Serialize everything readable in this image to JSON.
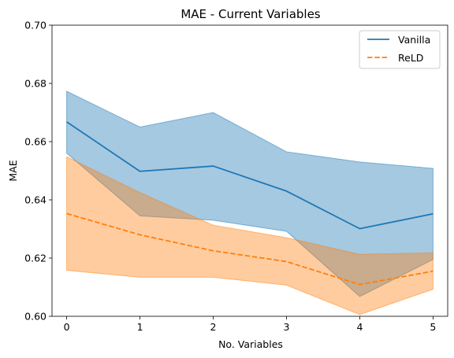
{
  "chart_data": {
    "type": "line",
    "title": "MAE - Current Variables",
    "xlabel": "No. Variables",
    "ylabel": "MAE",
    "x": [
      0,
      1,
      2,
      3,
      4,
      5
    ],
    "xticks": [
      "0",
      "1",
      "2",
      "3",
      "4",
      "5"
    ],
    "xlim": [
      -0.2,
      5.2
    ],
    "ylim": [
      0.6,
      0.7
    ],
    "yticks": [
      "0.60",
      "0.62",
      "0.64",
      "0.66",
      "0.68",
      "0.70"
    ],
    "ytick_values": [
      0.6,
      0.62,
      0.64,
      0.66,
      0.68,
      0.7
    ],
    "grid": false,
    "legend_position": "top-right",
    "series": [
      {
        "name": "Vanilla",
        "color": "#1f77b4",
        "linestyle": "solid",
        "values": [
          0.6668,
          0.6498,
          0.6516,
          0.643,
          0.6301,
          0.6352
        ],
        "upper": [
          0.6773,
          0.665,
          0.67,
          0.6565,
          0.653,
          0.6508
        ],
        "lower": [
          0.656,
          0.6345,
          0.633,
          0.6292,
          0.6068,
          0.6195
        ]
      },
      {
        "name": "ReLD",
        "color": "#ff7f0e",
        "linestyle": "dashed",
        "values": [
          0.6353,
          0.628,
          0.6225,
          0.6188,
          0.6109,
          0.6155
        ],
        "upper": [
          0.6548,
          0.6425,
          0.6313,
          0.627,
          0.6213,
          0.6218
        ],
        "lower": [
          0.6158,
          0.6134,
          0.6134,
          0.6107,
          0.6006,
          0.6093
        ]
      }
    ]
  }
}
